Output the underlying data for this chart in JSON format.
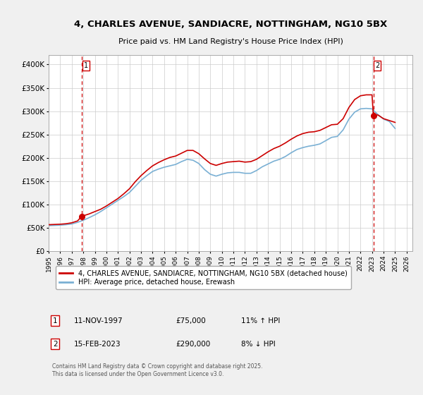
{
  "title_line1": "4, CHARLES AVENUE, SANDIACRE, NOTTINGHAM, NG10 5BX",
  "title_line2": "Price paid vs. HM Land Registry's House Price Index (HPI)",
  "bg_color": "#f0f0f0",
  "plot_bg_color": "#ffffff",
  "red_line_color": "#cc0000",
  "blue_line_color": "#7ab0d4",
  "marker_color": "#cc0000",
  "dashed_line_color": "#cc0000",
  "ylim": [
    0,
    420000
  ],
  "yticks": [
    0,
    50000,
    100000,
    150000,
    200000,
    250000,
    300000,
    350000,
    400000
  ],
  "ytick_labels": [
    "£0",
    "£50K",
    "£100K",
    "£150K",
    "£200K",
    "£250K",
    "£300K",
    "£350K",
    "£400K"
  ],
  "xmin_year": 1995.0,
  "xmax_year": 2026.5,
  "xtick_years": [
    1995,
    1996,
    1997,
    1998,
    1999,
    2000,
    2001,
    2002,
    2003,
    2004,
    2005,
    2006,
    2007,
    2008,
    2009,
    2010,
    2011,
    2012,
    2013,
    2014,
    2015,
    2016,
    2017,
    2018,
    2019,
    2020,
    2021,
    2022,
    2023,
    2024,
    2025,
    2026
  ],
  "legend_red_label": "4, CHARLES AVENUE, SANDIACRE, NOTTINGHAM, NG10 5BX (detached house)",
  "legend_blue_label": "HPI: Average price, detached house, Erewash",
  "point1_x": 1997.87,
  "point1_y": 75000,
  "point1_label": "1",
  "point2_x": 2023.12,
  "point2_y": 290000,
  "point2_label": "2",
  "table_rows": [
    [
      "1",
      "11-NOV-1997",
      "£75,000",
      "11% ↑ HPI"
    ],
    [
      "2",
      "15-FEB-2023",
      "£290,000",
      "8% ↓ HPI"
    ]
  ],
  "footer_text": "Contains HM Land Registry data © Crown copyright and database right 2025.\nThis data is licensed under the Open Government Licence v3.0.",
  "red_series_x": [
    1995.0,
    1995.5,
    1996.0,
    1996.5,
    1997.0,
    1997.5,
    1997.87,
    1998.0,
    1998.5,
    1999.0,
    1999.5,
    2000.0,
    2000.5,
    2001.0,
    2001.5,
    2002.0,
    2002.5,
    2003.0,
    2003.5,
    2004.0,
    2004.5,
    2005.0,
    2005.5,
    2006.0,
    2006.5,
    2007.0,
    2007.5,
    2008.0,
    2008.5,
    2009.0,
    2009.5,
    2010.0,
    2010.5,
    2011.0,
    2011.5,
    2012.0,
    2012.5,
    2013.0,
    2013.5,
    2014.0,
    2014.5,
    2015.0,
    2015.5,
    2016.0,
    2016.5,
    2017.0,
    2017.5,
    2018.0,
    2018.5,
    2019.0,
    2019.5,
    2020.0,
    2020.5,
    2021.0,
    2021.5,
    2022.0,
    2022.5,
    2023.0,
    2023.12,
    2023.5,
    2024.0,
    2024.5,
    2025.0
  ],
  "red_series_y": [
    57000,
    57500,
    58000,
    59000,
    61000,
    65000,
    75000,
    76000,
    80000,
    85000,
    90000,
    97000,
    105000,
    113000,
    123000,
    134000,
    149000,
    162000,
    173000,
    183000,
    190000,
    196000,
    201000,
    204000,
    210000,
    216000,
    216000,
    209000,
    198000,
    188000,
    184000,
    188000,
    191000,
    192000,
    193000,
    191000,
    192000,
    197000,
    205000,
    213000,
    220000,
    225000,
    232000,
    240000,
    247000,
    252000,
    255000,
    256000,
    259000,
    265000,
    271000,
    272000,
    284000,
    308000,
    325000,
    333000,
    335000,
    335000,
    290000,
    292000,
    284000,
    280000,
    276000
  ],
  "blue_series_x": [
    1995.0,
    1995.5,
    1996.0,
    1996.5,
    1997.0,
    1997.5,
    1998.0,
    1998.5,
    1999.0,
    1999.5,
    2000.0,
    2000.5,
    2001.0,
    2001.5,
    2002.0,
    2002.5,
    2003.0,
    2003.5,
    2004.0,
    2004.5,
    2005.0,
    2005.5,
    2006.0,
    2006.5,
    2007.0,
    2007.5,
    2008.0,
    2008.5,
    2009.0,
    2009.5,
    2010.0,
    2010.5,
    2011.0,
    2011.5,
    2012.0,
    2012.5,
    2013.0,
    2013.5,
    2014.0,
    2014.5,
    2015.0,
    2015.5,
    2016.0,
    2016.5,
    2017.0,
    2017.5,
    2018.0,
    2018.5,
    2019.0,
    2019.5,
    2020.0,
    2020.5,
    2021.0,
    2021.5,
    2022.0,
    2022.5,
    2023.0,
    2023.5,
    2024.0,
    2024.5,
    2025.0
  ],
  "blue_series_y": [
    55000,
    55400,
    56000,
    57000,
    58500,
    62000,
    66500,
    72000,
    78000,
    85000,
    93000,
    101000,
    109000,
    117000,
    126000,
    139000,
    152000,
    162000,
    171000,
    176000,
    180000,
    183000,
    186000,
    192000,
    197000,
    195000,
    188000,
    175000,
    165000,
    161000,
    165000,
    168000,
    169000,
    169000,
    167000,
    167000,
    173000,
    181000,
    187000,
    193000,
    197000,
    203000,
    211000,
    218000,
    222000,
    225000,
    227000,
    230000,
    237000,
    244000,
    246000,
    260000,
    283000,
    298000,
    305000,
    306000,
    305000,
    293000,
    283000,
    278000,
    263000
  ]
}
